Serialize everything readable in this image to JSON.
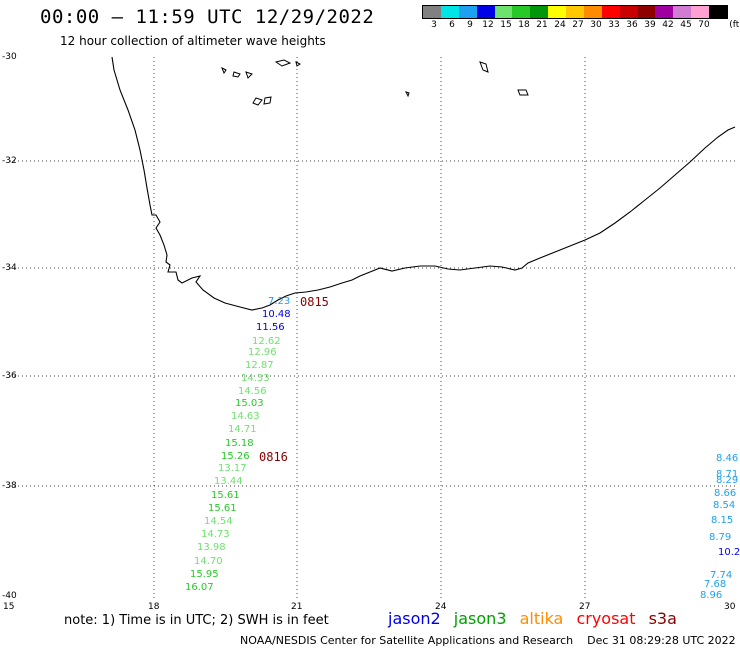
{
  "header": {
    "title": "00:00 – 11:59 UTC 12/29/2022",
    "subtitle": "12 hour collection of altimeter wave heights"
  },
  "legend": {
    "unit": "(ft)",
    "bins": [
      {
        "label": "3",
        "color": "#808080"
      },
      {
        "label": "6",
        "color": "#00e5e5"
      },
      {
        "label": "9",
        "color": "#1ea0f0"
      },
      {
        "label": "12",
        "color": "#0000e6"
      },
      {
        "label": "15",
        "color": "#6ee26e"
      },
      {
        "label": "18",
        "color": "#28c828"
      },
      {
        "label": "21",
        "color": "#00960a"
      },
      {
        "label": "24",
        "color": "#ffff00"
      },
      {
        "label": "27",
        "color": "#ffc800"
      },
      {
        "label": "30",
        "color": "#ff8c00"
      },
      {
        "label": "33",
        "color": "#ff0000"
      },
      {
        "label": "36",
        "color": "#c80000"
      },
      {
        "label": "39",
        "color": "#8c0000"
      },
      {
        "label": "42",
        "color": "#a000a0"
      },
      {
        "label": "45",
        "color": "#d27bd2"
      },
      {
        "label": "70",
        "color": "#ffa0d2"
      },
      {
        "label": "",
        "color": "#000000"
      }
    ]
  },
  "map": {
    "lat_labels": [
      "-30",
      "-32",
      "-34",
      "-36",
      "-38",
      "-40"
    ],
    "lon_labels": [
      "15",
      "18",
      "21",
      "24",
      "27",
      "30"
    ]
  },
  "track_labels": [
    {
      "text": "0815",
      "color": "#8b0000"
    },
    {
      "text": "0816",
      "color": "#8b0000"
    }
  ],
  "wave_heights_left": [
    {
      "value": "7.23",
      "color": "#1ea0f0"
    },
    {
      "value": "10.48",
      "color": "#0000e6"
    },
    {
      "value": "11.56",
      "color": "#0000e6"
    },
    {
      "value": "12.62",
      "color": "#6ee26e"
    },
    {
      "value": "12.96",
      "color": "#6ee26e"
    },
    {
      "value": "12.87",
      "color": "#6ee26e"
    },
    {
      "value": "14.33",
      "color": "#6ee26e"
    },
    {
      "value": "14.56",
      "color": "#6ee26e"
    },
    {
      "value": "15.03",
      "color": "#28c828"
    },
    {
      "value": "14.63",
      "color": "#6ee26e"
    },
    {
      "value": "14.71",
      "color": "#6ee26e"
    },
    {
      "value": "15.18",
      "color": "#28c828"
    },
    {
      "value": "15.26",
      "color": "#28c828"
    },
    {
      "value": "13.17",
      "color": "#6ee26e"
    },
    {
      "value": "13.44",
      "color": "#6ee26e"
    },
    {
      "value": "15.61",
      "color": "#28c828"
    },
    {
      "value": "15.61",
      "color": "#28c828"
    },
    {
      "value": "14.54",
      "color": "#6ee26e"
    },
    {
      "value": "14.73",
      "color": "#6ee26e"
    },
    {
      "value": "13.98",
      "color": "#6ee26e"
    },
    {
      "value": "14.70",
      "color": "#6ee26e"
    },
    {
      "value": "15.95",
      "color": "#28c828"
    },
    {
      "value": "16.07",
      "color": "#28c828"
    }
  ],
  "wave_heights_right": [
    {
      "value": "8.46",
      "color": "#1ea0f0"
    },
    {
      "value": "8.71",
      "color": "#1ea0f0"
    },
    {
      "value": "8.29",
      "color": "#1ea0f0"
    },
    {
      "value": "8.66",
      "color": "#1ea0f0"
    },
    {
      "value": "8.54",
      "color": "#1ea0f0"
    },
    {
      "value": "8.15",
      "color": "#1ea0f0"
    },
    {
      "value": "8.79",
      "color": "#1ea0f0"
    },
    {
      "value": "10.2",
      "color": "#0000e6"
    },
    {
      "value": "7.74",
      "color": "#1ea0f0"
    },
    {
      "value": "7.68",
      "color": "#1ea0f0"
    },
    {
      "value": "8.96",
      "color": "#1ea0f0"
    }
  ],
  "footer": {
    "note": "note:  1) Time is in UTC;  2) SWH is in feet",
    "satellites": [
      {
        "name": "jason2",
        "color": "#0000e6"
      },
      {
        "name": "jason3",
        "color": "#00a000"
      },
      {
        "name": "altika",
        "color": "#ff8c00"
      },
      {
        "name": "cryosat",
        "color": "#ff0000"
      },
      {
        "name": "s3a",
        "color": "#8b0000"
      }
    ],
    "credit": "NOAA/NESDIS Center for Satellite Applications and Research",
    "timestamp": "Dec 31 08:29:28 UTC 2022"
  }
}
